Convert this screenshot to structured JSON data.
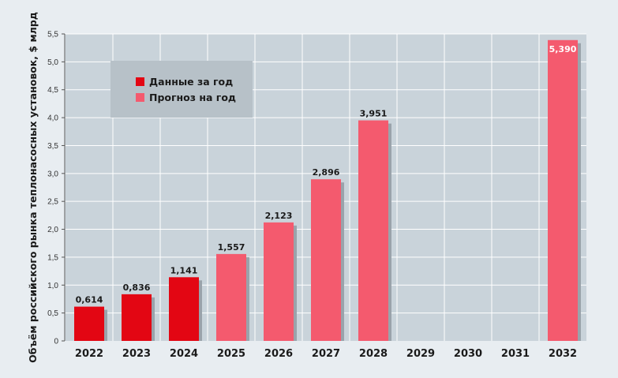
{
  "chart_data": {
    "type": "bar",
    "title": "",
    "ylabel": "Объём российского рынка теплонасосных установок, $ млрд",
    "xlabel": "",
    "categories": [
      "2022",
      "2023",
      "2024",
      "2025",
      "2026",
      "2027",
      "2028",
      "2029",
      "2030",
      "2031",
      "2032"
    ],
    "values": [
      0.614,
      0.836,
      1.141,
      1.557,
      2.123,
      2.896,
      3.951,
      null,
      null,
      null,
      5.39
    ],
    "value_labels": [
      "0,614",
      "0,836",
      "1,141",
      "1,557",
      "2,123",
      "2,896",
      "3,951",
      "",
      "",
      "",
      "5,390"
    ],
    "bar_kind": [
      "actual",
      "actual",
      "actual",
      "forecast",
      "forecast",
      "forecast",
      "forecast",
      "forecast",
      "forecast",
      "forecast",
      "forecast"
    ],
    "ylim": [
      0,
      5.5
    ],
    "yticks": [
      0,
      0.5,
      1.0,
      1.5,
      2.0,
      2.5,
      3.0,
      3.5,
      4.0,
      4.5,
      5.0,
      5.5
    ],
    "ytick_labels": [
      "0",
      "0,5",
      "1,0",
      "1,5",
      "2,0",
      "2,5",
      "3,0",
      "3,5",
      "4,0",
      "4,5",
      "5,0",
      "5,5"
    ],
    "grid": true,
    "legend_position": "top-left",
    "legend": [
      {
        "key": "actual",
        "label": "Данные за год",
        "color": "#e30613"
      },
      {
        "key": "forecast",
        "label": "Прогноз на год",
        "color": "#f45a6e"
      }
    ],
    "colors": {
      "actual": "#e30613",
      "forecast": "#f45a6e",
      "shadow": "#9aa3ab",
      "plot_bg": "#c9d3da",
      "grid": "#ffffff",
      "legend_bg": "#b7c1c8"
    }
  }
}
